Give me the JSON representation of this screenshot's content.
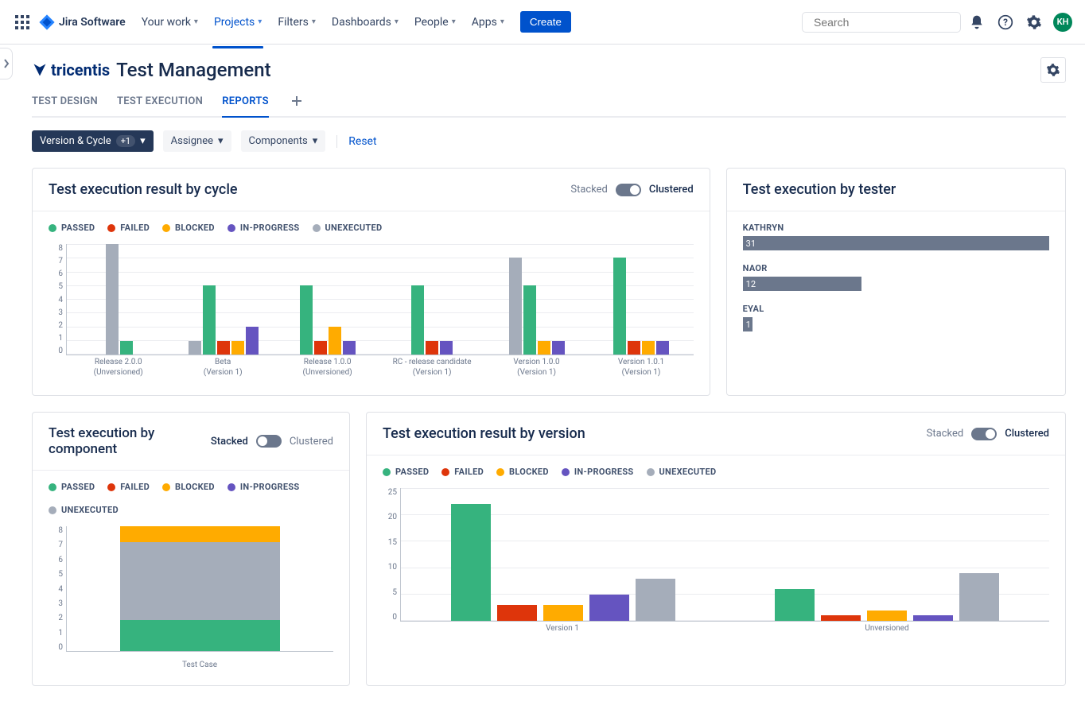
{
  "colors": {
    "passed": "#36b37e",
    "failed": "#de350b",
    "blocked": "#ffab00",
    "in_progress": "#6554c0",
    "unexecuted": "#a5adba",
    "tester_bar": "#6b778c"
  },
  "topnav": {
    "logo_text": "Jira Software",
    "items": [
      "Your work",
      "Projects",
      "Filters",
      "Dashboards",
      "People",
      "Apps"
    ],
    "active_index": 1,
    "create_label": "Create",
    "search_placeholder": "Search",
    "avatar_initials": "KH"
  },
  "page": {
    "brand": "tricentis",
    "title": "Test Management"
  },
  "tabs": {
    "items": [
      "TEST DESIGN",
      "TEST EXECUTION",
      "REPORTS"
    ],
    "active_index": 2
  },
  "filters": {
    "primary_label": "Version & Cycle",
    "primary_badge": "+1",
    "assignee_label": "Assignee",
    "components_label": "Components",
    "reset_label": "Reset"
  },
  "toggle": {
    "stacked": "Stacked",
    "clustered": "Clustered"
  },
  "legend": {
    "passed": "PASSED",
    "failed": "FAILED",
    "blocked": "BLOCKED",
    "in_progress": "IN-PROGRESS",
    "unexecuted": "UNEXECUTED"
  },
  "chart_cycle": {
    "title": "Test execution result by cycle",
    "ymax": 8,
    "yticks": [
      8,
      7,
      6,
      5,
      4,
      3,
      2,
      1,
      0
    ],
    "categories": [
      {
        "line1": "Release 2.0.0",
        "line2": "(Unversioned)",
        "values": {
          "passed": 1,
          "failed": 0,
          "blocked": 0,
          "in_progress": 0,
          "unexecuted": 8
        }
      },
      {
        "line1": "Beta",
        "line2": "(Version 1)",
        "values": {
          "passed": 5,
          "failed": 1,
          "blocked": 1,
          "in_progress": 2,
          "unexecuted": 1
        }
      },
      {
        "line1": "Release 1.0.0",
        "line2": "(Unversioned)",
        "values": {
          "passed": 5,
          "failed": 1,
          "blocked": 2,
          "in_progress": 1,
          "unexecuted": 0
        }
      },
      {
        "line1": "RC - release candidate",
        "line2": "(Version 1)",
        "values": {
          "passed": 5,
          "failed": 1,
          "blocked": 0,
          "in_progress": 1,
          "unexecuted": 0
        }
      },
      {
        "line1": "Version 1.0.0",
        "line2": "(Version 1)",
        "values": {
          "passed": 5,
          "failed": 0,
          "blocked": 1,
          "in_progress": 1,
          "unexecuted": 7
        }
      },
      {
        "line1": "Version 1.0.1",
        "line2": "(Version 1)",
        "values": {
          "passed": 7,
          "failed": 1,
          "blocked": 1,
          "in_progress": 1,
          "unexecuted": 0
        }
      }
    ]
  },
  "chart_tester": {
    "title": "Test execution by tester",
    "max": 31,
    "rows": [
      {
        "name": "KATHRYN",
        "value": 31
      },
      {
        "name": "NAOR",
        "value": 12
      },
      {
        "name": "EYAL",
        "value": 1
      }
    ]
  },
  "chart_component": {
    "title": "Test execution by component",
    "ymax": 8,
    "yticks": [
      8,
      7,
      6,
      5,
      4,
      3,
      2,
      1,
      0
    ],
    "category": "Test Case",
    "stack": {
      "passed": 2,
      "failed": 0,
      "blocked": 1,
      "in_progress": 0,
      "unexecuted": 5
    }
  },
  "chart_version": {
    "title": "Test execution result by version",
    "ymax": 25,
    "yticks": [
      25,
      20,
      15,
      10,
      5,
      0
    ],
    "categories": [
      {
        "label": "Version 1",
        "values": {
          "passed": 22,
          "failed": 3,
          "blocked": 3,
          "in_progress": 5,
          "unexecuted": 8
        }
      },
      {
        "label": "Unversioned",
        "values": {
          "passed": 6,
          "failed": 1,
          "blocked": 2,
          "in_progress": 1,
          "unexecuted": 9
        }
      }
    ]
  }
}
